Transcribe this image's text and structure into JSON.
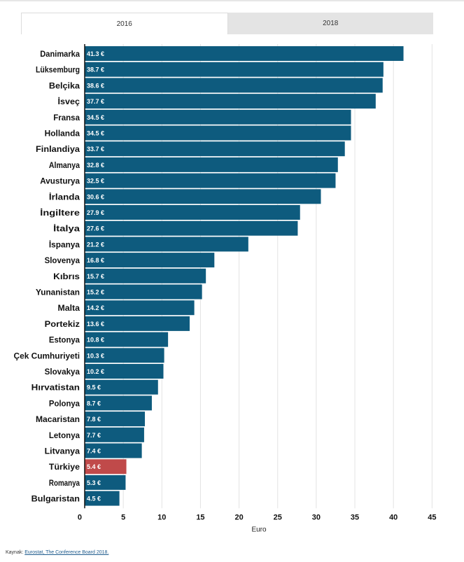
{
  "tabs": [
    {
      "label": "2016",
      "active": true
    },
    {
      "label": "2018",
      "active": false
    }
  ],
  "source": {
    "prefix": "Kaynak:",
    "link_text": "Eurostat,  The Conference Board 2018."
  },
  "colors": {
    "bar": "#0e5b7e",
    "highlight": "#c04a4a",
    "grid": "#e3e3e3",
    "axis": "#111111"
  },
  "chart_data": {
    "type": "bar",
    "orientation": "horizontal",
    "xlabel": "Euro",
    "xlim": [
      0,
      46
    ],
    "xticks": [
      0,
      5,
      10,
      15,
      20,
      25,
      30,
      35,
      40,
      45
    ],
    "grid": true,
    "highlight_category": "Türkiye",
    "categories": [
      "Danimarka",
      "Lüksemburg",
      "Belçika",
      "İsveç",
      "Fransa",
      "Hollanda",
      "Finlandiya",
      "Almanya",
      "Avusturya",
      "İrlanda",
      "İngiltere",
      "İtalya",
      "İspanya",
      "Slovenya",
      "Kıbrıs",
      "Yunanistan",
      "Malta",
      "Portekiz",
      "Estonya",
      "Çek Cumhuriyeti",
      "Slovakya",
      "Hırvatistan",
      "Polonya",
      "Macaristan",
      "Letonya",
      "Litvanya",
      "Türkiye",
      "Romanya",
      "Bulgaristan"
    ],
    "values": [
      41.3,
      38.7,
      38.6,
      37.7,
      34.5,
      34.5,
      33.7,
      32.8,
      32.5,
      30.6,
      27.9,
      27.6,
      21.2,
      16.8,
      15.7,
      15.2,
      14.2,
      13.6,
      10.8,
      10.3,
      10.2,
      9.5,
      8.7,
      7.8,
      7.7,
      7.4,
      5.4,
      5.3,
      4.5
    ],
    "value_labels": [
      "41.3 €",
      "38.7 €",
      "38.6 €",
      "37.7 €",
      "34.5 €",
      "34.5 €",
      "33.7 €",
      "32.8 €",
      "32.5 €",
      "30.6 €",
      "27.9 €",
      "27.6 €",
      "21.2 €",
      "16.8 €",
      "15.7 €",
      "15.2 €",
      "14.2 €",
      "13.6 €",
      "10.8 €",
      "10.3 €",
      "10.2 €",
      "9.5 €",
      "8.7 €",
      "7.8 €",
      "7.7 €",
      "7.4 €",
      "5.4 €",
      "5.3 €",
      "4.5 €"
    ]
  }
}
